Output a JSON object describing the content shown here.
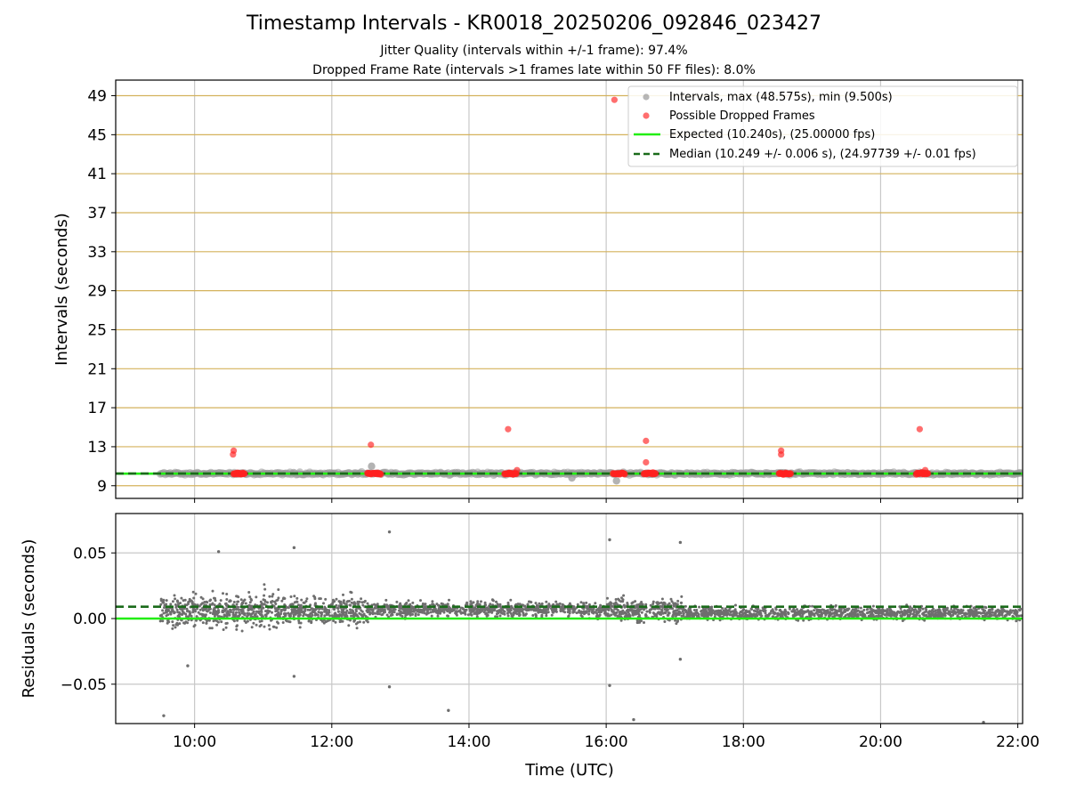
{
  "figure": {
    "title": "Timestamp Intervals - KR0018_20250206_092846_023427",
    "subtitle1": "Jitter Quality (intervals within +/-1 frame): 97.4%",
    "subtitle2": "Dropped Frame Rate (intervals >1 frames late within 50 FF files): 8.0%",
    "xlabel": "Time (UTC)",
    "xticks": [
      "10:00",
      "12:00",
      "14:00",
      "16:00",
      "18:00",
      "20:00",
      "22:00"
    ]
  },
  "colors": {
    "intervals": "#999999",
    "dropped": "#ff2020",
    "expected": "#22ee11",
    "median": "#1a6b1a",
    "hgrid_top": "#d4b25c",
    "grid": "#c8c8c8",
    "residual_points": "#6e6e6e"
  },
  "chart_data": [
    {
      "type": "scatter",
      "panel": "intervals",
      "ylabel": "Intervals (seconds)",
      "xlim_hours": [
        8.85,
        22.07
      ],
      "ylim": [
        7.7,
        50.6
      ],
      "yticks": [
        "9",
        "13",
        "17",
        "21",
        "25",
        "29",
        "33",
        "37",
        "41",
        "45",
        "49"
      ],
      "grid": true,
      "legend_position": "upper right",
      "legend": {
        "intervals": "Intervals, max (48.575s), min (9.500s)",
        "dropped": "Possible Dropped Frames",
        "expected": "Expected (10.240s), (25.00000 fps)",
        "median": "Median (10.249 +/- 0.006 s), (24.97739 +/- 0.01 fps)"
      },
      "expected_value": 10.24,
      "median_value": 10.249,
      "series": [
        {
          "name": "Intervals, max (48.575s), min (9.500s)",
          "x_range_hours": [
            9.5,
            22.05
          ],
          "typical_value": 10.25,
          "outliers": [
            {
              "x_hours": 12.58,
              "y": 11.0
            },
            {
              "x_hours": 16.15,
              "y": 9.5
            },
            {
              "x_hours": 15.5,
              "y": 9.8
            }
          ]
        },
        {
          "name": "Possible Dropped Frames",
          "clusters": [
            {
              "x_from": 10.57,
              "x_to": 10.73,
              "y": 10.25
            },
            {
              "x_from": 12.52,
              "x_to": 12.72,
              "y": 10.25
            },
            {
              "x_from": 14.52,
              "x_to": 14.7,
              "y": 10.25
            },
            {
              "x_from": 16.1,
              "x_to": 16.28,
              "y": 10.25
            },
            {
              "x_from": 16.55,
              "x_to": 16.72,
              "y": 10.25
            },
            {
              "x_from": 18.52,
              "x_to": 18.7,
              "y": 10.25
            },
            {
              "x_from": 20.52,
              "x_to": 20.7,
              "y": 10.25
            }
          ],
          "points": [
            {
              "x_hours": 10.57,
              "y": 12.6
            },
            {
              "x_hours": 10.56,
              "y": 12.2
            },
            {
              "x_hours": 12.57,
              "y": 13.2
            },
            {
              "x_hours": 14.57,
              "y": 14.8
            },
            {
              "x_hours": 14.7,
              "y": 10.6
            },
            {
              "x_hours": 16.12,
              "y": 48.575
            },
            {
              "x_hours": 16.58,
              "y": 13.6
            },
            {
              "x_hours": 16.58,
              "y": 11.4
            },
            {
              "x_hours": 18.55,
              "y": 12.6
            },
            {
              "x_hours": 18.55,
              "y": 12.2
            },
            {
              "x_hours": 20.57,
              "y": 14.8
            },
            {
              "x_hours": 20.65,
              "y": 10.6
            }
          ]
        }
      ]
    },
    {
      "type": "scatter",
      "panel": "residuals",
      "ylabel": "Residuals (seconds)",
      "xlim_hours": [
        8.85,
        22.07
      ],
      "ylim": [
        -0.08,
        0.08
      ],
      "yticks": [
        "−0.05",
        "0.00",
        "0.05"
      ],
      "ytick_values": [
        -0.05,
        0.0,
        0.05
      ],
      "grid": true,
      "expected_value": 0.0,
      "median_value": 0.009,
      "series": [
        {
          "x_range_hours": [
            9.5,
            22.05
          ],
          "segments": [
            {
              "x_from": 9.5,
              "x_to": 11.25,
              "center": 0.006,
              "spread": 0.016,
              "n": 520
            },
            {
              "x_from": 11.25,
              "x_to": 12.55,
              "center": 0.006,
              "spread": 0.013,
              "n": 380
            },
            {
              "x_from": 12.55,
              "x_to": 16.1,
              "center": 0.007,
              "spread": 0.007,
              "n": 900
            },
            {
              "x_from": 16.1,
              "x_to": 17.1,
              "center": 0.006,
              "spread": 0.011,
              "n": 300
            },
            {
              "x_from": 17.1,
              "x_to": 22.05,
              "center": 0.004,
              "spread": 0.006,
              "n": 1100
            }
          ],
          "outliers": [
            {
              "x_hours": 9.55,
              "y": -0.074
            },
            {
              "x_hours": 9.9,
              "y": -0.036
            },
            {
              "x_hours": 10.35,
              "y": 0.051
            },
            {
              "x_hours": 11.45,
              "y": 0.054
            },
            {
              "x_hours": 11.45,
              "y": -0.044
            },
            {
              "x_hours": 12.84,
              "y": 0.066
            },
            {
              "x_hours": 12.84,
              "y": -0.052
            },
            {
              "x_hours": 13.7,
              "y": -0.07
            },
            {
              "x_hours": 16.05,
              "y": 0.06
            },
            {
              "x_hours": 16.05,
              "y": -0.051
            },
            {
              "x_hours": 16.4,
              "y": -0.077
            },
            {
              "x_hours": 17.08,
              "y": 0.058
            },
            {
              "x_hours": 17.08,
              "y": -0.031
            },
            {
              "x_hours": 21.5,
              "y": -0.079
            }
          ]
        }
      ]
    }
  ]
}
